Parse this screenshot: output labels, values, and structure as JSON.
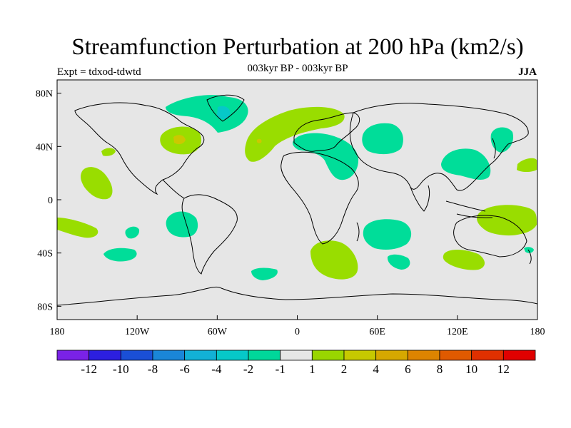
{
  "header": {
    "title": "Streamfunction Perturbation at 200 hPa (km2/s)",
    "subtitle": "003kyr BP - 003kyr BP",
    "experiment": "Expt = tdxod-tdwtd",
    "season": "JJA"
  },
  "axes": {
    "lat_ticks": [
      "80N",
      "40N",
      "0",
      "40S",
      "80S"
    ],
    "lon_ticks": [
      "180",
      "120W",
      "60W",
      "0",
      "60E",
      "120E",
      "180"
    ]
  },
  "colors": {
    "ocean_background": "#e6e6e6",
    "coastline": "#000000",
    "pos_1_2": "#99dd00",
    "neg_1_2": "#00dd99",
    "pos_2_4": "#ccc800"
  },
  "colorbar": {
    "labels": [
      "-12",
      "-10",
      "-8",
      "-6",
      "-4",
      "-2",
      "-1",
      "1",
      "2",
      "4",
      "6",
      "8",
      "10",
      "12"
    ],
    "colors": [
      "#7a22e6",
      "#2c1fe0",
      "#1a4fd6",
      "#1a86d8",
      "#12b1d6",
      "#06c8c8",
      "#00d79a",
      "#e6e6e6",
      "#99d600",
      "#c6c900",
      "#d6a800",
      "#dd8400",
      "#e05a00",
      "#e03000",
      "#e00000"
    ]
  }
}
